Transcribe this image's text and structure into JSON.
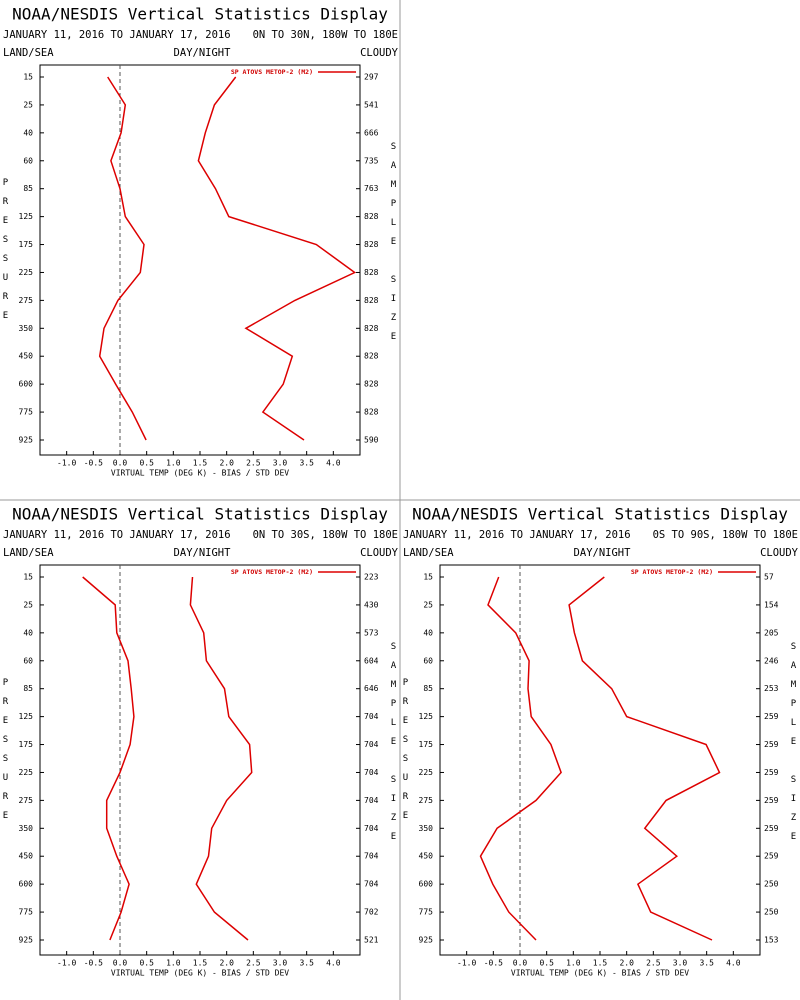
{
  "chart_data": [
    {
      "type": "line",
      "title": "NOAA/NESDIS Vertical Statistics Display",
      "subtitle": "JANUARY 11, 2016 TO JANUARY 17, 2016",
      "region": "0N TO 30N, 180W TO 180E",
      "left_label": "LAND/SEA",
      "center_label": "DAY/NIGHT",
      "right_label": "CLOUDY",
      "y_label": "PRESSURE",
      "y2_label": "SAMPLE SIZE",
      "x_label": "VIRTUAL TEMP (DEG K) - BIAS / STD DEV",
      "categories": [
        15,
        25,
        40,
        60,
        85,
        125,
        175,
        225,
        275,
        350,
        450,
        600,
        775,
        925
      ],
      "sample_size": [
        297,
        541,
        666,
        735,
        763,
        828,
        828,
        828,
        828,
        828,
        828,
        828,
        828,
        590
      ],
      "series": [
        {
          "name": "SP ATOVS METOP-2 (M2)",
          "color": "#dd0000",
          "bias": [
            -0.23,
            0.1,
            0.02,
            -0.17,
            0,
            0.1,
            0.45,
            0.38,
            -0.04,
            -0.3,
            -0.38,
            -0.08,
            0.23,
            0.49
          ],
          "std_dev": [
            2.17,
            1.77,
            1.6,
            1.47,
            1.79,
            2.04,
            3.68,
            4.4,
            3.28,
            2.36,
            3.23,
            3.06,
            2.68,
            3.45
          ]
        }
      ],
      "xlim": [
        -1.5,
        4.5
      ],
      "xticks": [
        {
          "value": -1,
          "label": "-1.0"
        },
        -0.5,
        {
          "value": 0,
          "label": "0.0"
        },
        0.5,
        {
          "value": 1,
          "label": "1.0"
        },
        1.5,
        {
          "value": 2,
          "label": "2.0"
        },
        2.5,
        {
          "value": 3,
          "label": "3.0"
        },
        3.5,
        {
          "value": 4,
          "label": "4.0"
        }
      ]
    },
    {
      "type": "line",
      "title": "NOAA/NESDIS Vertical Statistics Display",
      "subtitle": "JANUARY 11, 2016 TO JANUARY 17, 2016",
      "region": "0N TO 30S, 180W TO 180E",
      "left_label": "LAND/SEA",
      "center_label": "DAY/NIGHT",
      "right_label": "CLOUDY",
      "y_label": "PRESSURE",
      "y2_label": "SAMPLE SIZE",
      "x_label": "VIRTUAL TEMP (DEG K) - BIAS / STD DEV",
      "categories": [
        15,
        25,
        40,
        60,
        85,
        125,
        175,
        225,
        275,
        350,
        450,
        600,
        775,
        925
      ],
      "sample_size": [
        223,
        430,
        573,
        604,
        646,
        704,
        704,
        704,
        704,
        704,
        704,
        704,
        702,
        521
      ],
      "series": [
        {
          "name": "SP ATOVS METOP-2 (M2)",
          "color": "#dd0000",
          "bias": [
            -0.7,
            -0.09,
            -0.06,
            0.15,
            0.21,
            0.26,
            0.19,
            0,
            -0.25,
            -0.25,
            -0.06,
            0.17,
            0.02,
            -0.19
          ],
          "std_dev": [
            1.36,
            1.32,
            1.57,
            1.62,
            1.96,
            2.04,
            2.43,
            2.47,
            2.0,
            1.72,
            1.66,
            1.43,
            1.77,
            2.4
          ]
        }
      ],
      "xlim": [
        -1.5,
        4.5
      ],
      "xticks": [
        {
          "value": -1,
          "label": "-1.0"
        },
        -0.5,
        {
          "value": 0,
          "label": "0.0"
        },
        0.5,
        {
          "value": 1,
          "label": "1.0"
        },
        1.5,
        {
          "value": 2,
          "label": "2.0"
        },
        2.5,
        {
          "value": 3,
          "label": "3.0"
        },
        3.5,
        {
          "value": 4,
          "label": "4.0"
        }
      ]
    },
    {
      "type": "line",
      "title": "NOAA/NESDIS Vertical Statistics Display",
      "subtitle": "JANUARY 11, 2016 TO JANUARY 17, 2016",
      "region": "0S TO 90S, 180W TO 180E",
      "left_label": "LAND/SEA",
      "center_label": "DAY/NIGHT",
      "right_label": "CLOUDY",
      "y_label": "PRESSURE",
      "y2_label": "SAMPLE SIZE",
      "x_label": "VIRTUAL TEMP (DEG K) - BIAS / STD DEV",
      "categories": [
        15,
        25,
        40,
        60,
        85,
        125,
        175,
        225,
        275,
        350,
        450,
        600,
        775,
        925
      ],
      "sample_size": [
        57,
        154,
        205,
        246,
        253,
        259,
        259,
        259,
        259,
        259,
        259,
        250,
        250,
        153
      ],
      "series": [
        {
          "name": "SP ATOVS METOP-2 (M2)",
          "color": "#dd0000",
          "bias": [
            -0.4,
            -0.6,
            -0.08,
            0.17,
            0.15,
            0.21,
            0.58,
            0.77,
            0.3,
            -0.43,
            -0.74,
            -0.51,
            -0.21,
            0.3
          ],
          "std_dev": [
            1.58,
            0.92,
            1.02,
            1.17,
            1.72,
            2.0,
            3.49,
            3.74,
            2.74,
            2.34,
            2.94,
            2.21,
            2.45,
            3.6
          ]
        }
      ],
      "xlim": [
        -1.5,
        4.5
      ],
      "xticks": [
        {
          "value": -1,
          "label": "-1.0"
        },
        -0.5,
        {
          "value": 0,
          "label": "0.0"
        },
        0.5,
        {
          "value": 1,
          "label": "1.0"
        },
        1.5,
        {
          "value": 2,
          "label": "2.0"
        },
        2.5,
        {
          "value": 3,
          "label": "3.0"
        },
        3.5,
        {
          "value": 4,
          "label": "4.0"
        }
      ]
    }
  ]
}
